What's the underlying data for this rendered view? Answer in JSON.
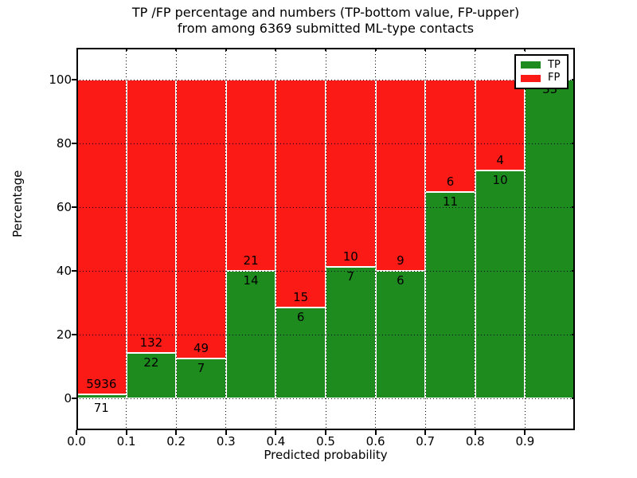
{
  "title": {
    "line1": "TP /FP percentage and numbers (TP-bottom value, FP-upper)",
    "line2": "from among 6369 submitted ML-type contacts"
  },
  "chart_data": {
    "type": "bar",
    "stacked": true,
    "normalized_to_percent": true,
    "title": "TP /FP percentage and numbers (TP-bottom value, FP-upper) from among 6369 submitted ML-type contacts",
    "total_contacts": 6369,
    "xlabel": "Predicted probability",
    "ylabel": "Percentage",
    "bin_edges": [
      0.0,
      0.1,
      0.2,
      0.3,
      0.4,
      0.5,
      0.6,
      0.7,
      0.8,
      0.9,
      1.0
    ],
    "categories": [
      "0.0-0.1",
      "0.1-0.2",
      "0.2-0.3",
      "0.3-0.4",
      "0.4-0.5",
      "0.5-0.6",
      "0.6-0.7",
      "0.7-0.8",
      "0.8-0.9",
      "0.9-1.0"
    ],
    "series": [
      {
        "name": "TP",
        "color": "#1e8b1e",
        "counts": [
          71,
          22,
          7,
          14,
          6,
          7,
          6,
          11,
          10,
          33
        ]
      },
      {
        "name": "FP",
        "color": "#fb1a15",
        "counts": [
          5936,
          132,
          49,
          21,
          15,
          10,
          9,
          6,
          4,
          0
        ]
      }
    ],
    "tp_percent": [
      1.18,
      14.29,
      12.5,
      40.0,
      28.57,
      41.18,
      40.0,
      64.71,
      71.43,
      100.0
    ],
    "yticks": [
      "0",
      "20",
      "40",
      "60",
      "80",
      "100"
    ],
    "xticks": [
      "0.0",
      "0.1",
      "0.2",
      "0.3",
      "0.4",
      "0.5",
      "0.6",
      "0.7",
      "0.8",
      "0.9"
    ],
    "ylim": [
      -10,
      110
    ],
    "xlim": [
      0.0,
      1.0
    ],
    "grid": "dotted, drawn above bars",
    "legend_position": "upper right",
    "colors": {
      "tp_green": "#1e8b1e",
      "fp_red": "#fb1a15",
      "grid": "#000000",
      "bar_edge": "#ffffff"
    }
  }
}
